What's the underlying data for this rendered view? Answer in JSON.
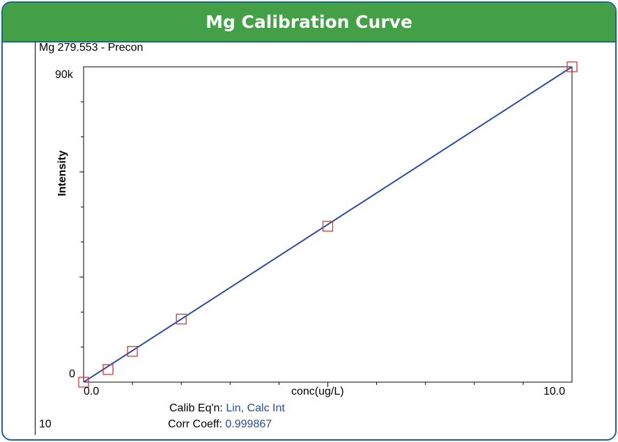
{
  "banner_title": "Mg Calibration Curve",
  "chart_data": {
    "type": "scatter",
    "title": "Mg 279.553 - Precon",
    "xlabel": "conc(ug/L)",
    "ylabel": "Intensity",
    "xlim": [
      0,
      10
    ],
    "ylim": [
      0,
      90000
    ],
    "x_tick_labels": [
      "0.0",
      "10.0"
    ],
    "y_tick_labels": [
      "90k",
      "0"
    ],
    "points": [
      {
        "x": 0.0,
        "y": 0
      },
      {
        "x": 0.5,
        "y": 3600
      },
      {
        "x": 1.0,
        "y": 8800
      },
      {
        "x": 2.0,
        "y": 18000
      },
      {
        "x": 5.0,
        "y": 44500
      },
      {
        "x": 10.0,
        "y": 90000
      }
    ],
    "fit_line": [
      {
        "x": 0.0,
        "y": 0
      },
      {
        "x": 10.0,
        "y": 90000
      }
    ],
    "colors": {
      "line": "#2a4aa0",
      "marker": "#e03030",
      "frame": "#000000"
    }
  },
  "footer": {
    "left_value": "10",
    "calib_label": "Calib Eq'n:",
    "calib_value": "Lin, Calc Int",
    "corr_label": "Corr Coeff:",
    "corr_value": "0.999867"
  }
}
